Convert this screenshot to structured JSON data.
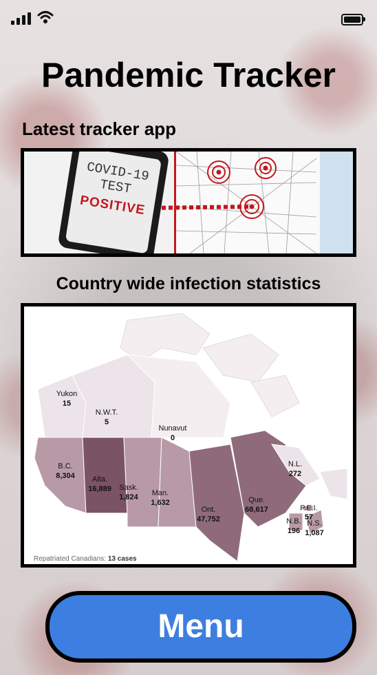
{
  "app": {
    "title": "Pandemic Tracker",
    "section_tracker": "Latest tracker app",
    "section_stats": "Country wide infection statistics",
    "menu_label": "Menu"
  },
  "banner": {
    "phone_line1": "COVID-19",
    "phone_line2": "TEST",
    "phone_line3": "POSITIVE"
  },
  "map": {
    "footnote_label": "Repatriated Canadians:",
    "footnote_value": "13 cases",
    "regions": [
      {
        "name": "Yukon",
        "cases": "15"
      },
      {
        "name": "N.W.T.",
        "cases": "5"
      },
      {
        "name": "Nunavut",
        "cases": "0"
      },
      {
        "name": "B.C.",
        "cases": "8,304"
      },
      {
        "name": "Alta.",
        "cases": "16,889"
      },
      {
        "name": "Sask.",
        "cases": "1,824"
      },
      {
        "name": "Man.",
        "cases": "1,632"
      },
      {
        "name": "Ont.",
        "cases": "47,752"
      },
      {
        "name": "Que.",
        "cases": "68,617"
      },
      {
        "name": "N.L.",
        "cases": "272"
      },
      {
        "name": "P.E.I.",
        "cases": "57"
      },
      {
        "name": "N.B.",
        "cases": "196"
      },
      {
        "name": "N.S.",
        "cases": "1,087"
      }
    ]
  },
  "colors": {
    "menu_button": "#3d7fe0",
    "low": "#ece4e8",
    "medium": "#b89aa6",
    "high": "#7a5364",
    "accent_red": "#c4161c"
  },
  "icons": {
    "signal": "signal-icon",
    "wifi": "wifi-icon",
    "battery": "battery-icon"
  }
}
